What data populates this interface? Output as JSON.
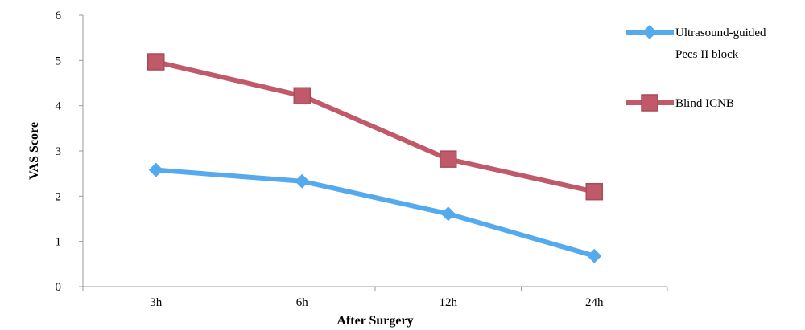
{
  "chart_data": {
    "type": "line",
    "categories": [
      "3h",
      "6h",
      "12h",
      "24h"
    ],
    "series": [
      {
        "name": "Ultrasound-guided Pecs II block",
        "name_lines": [
          "Ultrasound-guided",
          "Pecs II block"
        ],
        "values": [
          2.58,
          2.33,
          1.61,
          0.68
        ],
        "color": "#55aaee",
        "marker": "diamond"
      },
      {
        "name": "Blind ICNB",
        "name_lines": [
          "Blind ICNB"
        ],
        "values": [
          4.97,
          4.22,
          2.82,
          2.1
        ],
        "color": "#c05a6a",
        "marker": "square"
      }
    ],
    "xlabel": "After Surgery",
    "ylabel": "VAS Score",
    "ylim": [
      0,
      6
    ],
    "yticks": [
      "0",
      "1",
      "2",
      "3",
      "4",
      "5",
      "6"
    ],
    "grid": false,
    "legend_position": "right"
  }
}
